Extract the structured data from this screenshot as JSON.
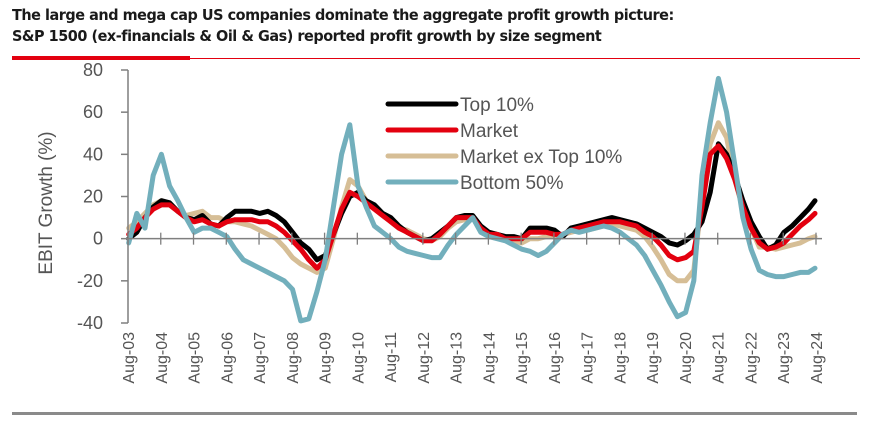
{
  "header": {
    "title_line1": "The large and mega cap US companies dominate the aggregate profit growth picture:",
    "title_line2": "S&P 1500 (ex-financials & Oil & Gas) reported profit growth by size segment",
    "accent_color": "#e3000f"
  },
  "chart_data": {
    "type": "line",
    "title": "S&P 1500 (ex-financials & Oil & Gas) reported profit growth by size segment",
    "xlabel": "",
    "ylabel": "EBIT Growth (%)",
    "ylim": [
      -40,
      80
    ],
    "yticks": [
      80,
      60,
      40,
      20,
      0,
      -20,
      -40
    ],
    "ytick_labels": [
      "80",
      "60",
      "40",
      "20",
      "0",
      "-20",
      "-40"
    ],
    "xlim": [
      2003.58,
      2024.6
    ],
    "xticks": [
      2003.58,
      2004.58,
      2005.58,
      2006.58,
      2007.58,
      2008.58,
      2009.58,
      2010.58,
      2011.58,
      2012.58,
      2013.58,
      2014.58,
      2015.58,
      2016.58,
      2017.58,
      2018.58,
      2019.58,
      2020.58,
      2021.58,
      2022.58,
      2023.58,
      2024.58
    ],
    "xtick_labels": [
      "Aug-03",
      "Aug-04",
      "Aug-05",
      "Aug-06",
      "Aug-07",
      "Aug-08",
      "Aug-09",
      "Aug-10",
      "Aug-11",
      "Aug-12",
      "Aug-13",
      "Aug-14",
      "Aug-15",
      "Aug-16",
      "Aug-17",
      "Aug-18",
      "Aug-19",
      "Aug-20",
      "Aug-21",
      "Aug-22",
      "Aug-23",
      "Aug-24"
    ],
    "grid": false,
    "legend": {
      "placement": "top-center",
      "entries": [
        "Top 10%",
        "Market",
        "Market ex Top 10%",
        "Bottom 50%"
      ]
    },
    "x": [
      2003.6,
      2003.85,
      2004.1,
      2004.35,
      2004.6,
      2004.85,
      2005.1,
      2005.35,
      2005.6,
      2005.85,
      2006.1,
      2006.35,
      2006.6,
      2006.85,
      2007.1,
      2007.35,
      2007.6,
      2007.85,
      2008.1,
      2008.35,
      2008.6,
      2008.85,
      2009.1,
      2009.35,
      2009.6,
      2009.85,
      2010.1,
      2010.35,
      2010.6,
      2010.85,
      2011.1,
      2011.35,
      2011.6,
      2011.85,
      2012.1,
      2012.35,
      2012.6,
      2012.85,
      2013.1,
      2013.35,
      2013.6,
      2013.85,
      2014.1,
      2014.35,
      2014.6,
      2014.85,
      2015.1,
      2015.35,
      2015.6,
      2015.85,
      2016.1,
      2016.35,
      2016.6,
      2016.85,
      2017.1,
      2017.35,
      2017.6,
      2017.85,
      2018.1,
      2018.35,
      2018.6,
      2018.85,
      2019.1,
      2019.35,
      2019.6,
      2019.85,
      2020.1,
      2020.35,
      2020.6,
      2020.85,
      2021.1,
      2021.35,
      2021.6,
      2021.85,
      2022.1,
      2022.35,
      2022.6,
      2022.85,
      2023.1,
      2023.35,
      2023.6,
      2023.85,
      2024.1,
      2024.35,
      2024.55
    ],
    "series": [
      {
        "name": "Top 10%",
        "color": "#000000",
        "values": [
          0,
          3,
          10,
          15,
          18,
          17,
          13,
          10,
          9,
          11,
          7,
          6,
          10,
          13,
          13,
          13,
          12,
          13,
          11,
          8,
          3,
          -2,
          -5,
          -10,
          -8,
          2,
          12,
          20,
          22,
          18,
          16,
          12,
          10,
          6,
          3,
          1,
          -1,
          0,
          3,
          6,
          10,
          11,
          11,
          6,
          3,
          2,
          1,
          1,
          0,
          5,
          5,
          5,
          4,
          1,
          5,
          6,
          7,
          8,
          9,
          10,
          9,
          8,
          7,
          5,
          3,
          1,
          -2,
          -3,
          -1,
          2,
          8,
          22,
          45,
          40,
          30,
          18,
          8,
          1,
          -5,
          -3,
          3,
          6,
          10,
          14,
          18
        ]
      },
      {
        "name": "Market",
        "color": "#e3000f",
        "values": [
          2,
          5,
          10,
          14,
          16,
          16,
          13,
          10,
          8,
          9,
          7,
          6,
          8,
          9,
          9,
          9,
          8,
          8,
          6,
          3,
          -1,
          -5,
          -10,
          -14,
          -10,
          2,
          14,
          22,
          20,
          17,
          14,
          11,
          8,
          5,
          3,
          1,
          -1,
          -1,
          2,
          6,
          10,
          10,
          10,
          5,
          2,
          2,
          0,
          0,
          0,
          3,
          3,
          3,
          2,
          2,
          4,
          5,
          6,
          7,
          8,
          8,
          8,
          7,
          6,
          3,
          1,
          -3,
          -8,
          -10,
          -9,
          -6,
          15,
          40,
          44,
          38,
          28,
          15,
          5,
          -2,
          -5,
          -4,
          -2,
          2,
          6,
          9,
          12
        ]
      },
      {
        "name": "Market ex Top 10%",
        "color": "#d6be96",
        "values": [
          5,
          8,
          12,
          16,
          18,
          16,
          13,
          11,
          12,
          13,
          10,
          10,
          8,
          8,
          7,
          6,
          4,
          2,
          0,
          -4,
          -9,
          -12,
          -14,
          -16,
          -14,
          0,
          15,
          28,
          25,
          18,
          15,
          12,
          8,
          5,
          4,
          2,
          0,
          -1,
          1,
          5,
          8,
          9,
          10,
          5,
          3,
          2,
          0,
          -1,
          -2,
          0,
          0,
          1,
          1,
          2,
          3,
          4,
          4,
          5,
          6,
          7,
          6,
          5,
          4,
          1,
          -4,
          -10,
          -17,
          -20,
          -20,
          -15,
          20,
          45,
          55,
          48,
          28,
          14,
          5,
          -4,
          -4,
          -5,
          -4,
          -3,
          -2,
          0,
          1
        ]
      },
      {
        "name": "Bottom 50%",
        "color": "#72afbc",
        "values": [
          -2,
          12,
          5,
          30,
          40,
          25,
          18,
          10,
          3,
          5,
          5,
          3,
          1,
          -5,
          -10,
          -12,
          -14,
          -16,
          -18,
          -20,
          -24,
          -39,
          -38,
          -25,
          -10,
          15,
          40,
          54,
          25,
          15,
          6,
          3,
          0,
          -4,
          -6,
          -7,
          -8,
          -9,
          -9,
          -3,
          2,
          6,
          10,
          3,
          1,
          0,
          -1,
          -3,
          -5,
          -6,
          -8,
          -6,
          -2,
          2,
          4,
          3,
          4,
          5,
          6,
          5,
          3,
          0,
          -3,
          -8,
          -15,
          -22,
          -30,
          -37,
          -35,
          -20,
          30,
          55,
          76,
          60,
          35,
          10,
          -5,
          -15,
          -17,
          -18,
          -18,
          -17,
          -16,
          -16,
          -14
        ]
      }
    ]
  }
}
